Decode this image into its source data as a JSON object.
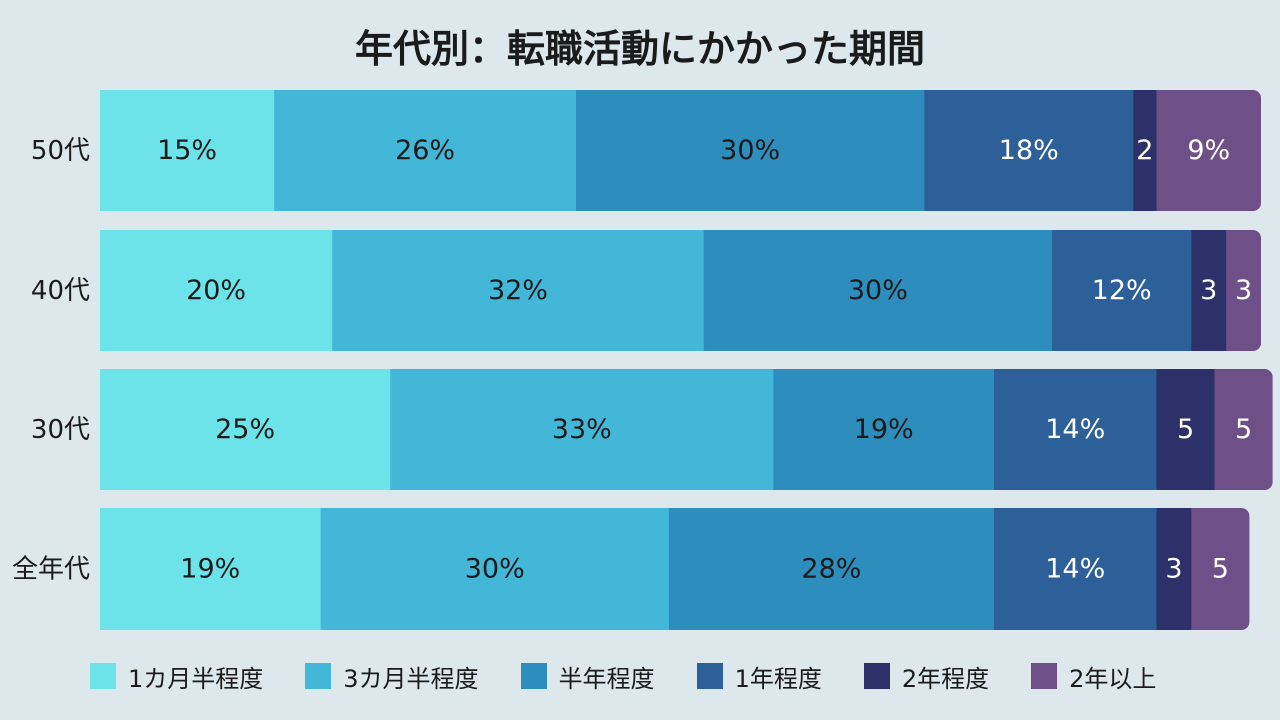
{
  "chart_data": {
    "type": "bar",
    "orientation": "horizontal",
    "stacked": true,
    "title": "年代別：転職活動にかかった期間",
    "xlabel": "",
    "ylabel": "",
    "xlim": [
      0,
      100
    ],
    "grid": false,
    "legend_position": "bottom",
    "categories": [
      "50代",
      "40代",
      "30代",
      "全年代"
    ],
    "series": [
      {
        "name": "1カ月半程度",
        "color": "#6ce3e9",
        "label_color": "#1b1b1b",
        "values": [
          15,
          20,
          25,
          19
        ],
        "labels": [
          "15%",
          "20%",
          "25%",
          "19%"
        ]
      },
      {
        "name": "3カ月半程度",
        "color": "#42b7d7",
        "label_color": "#1b1b1b",
        "values": [
          26,
          32,
          33,
          30
        ],
        "labels": [
          "26%",
          "32%",
          "33%",
          "30%"
        ]
      },
      {
        "name": "半年程度",
        "color": "#2d8dbc",
        "label_color": "#1b1b1b",
        "values": [
          30,
          30,
          19,
          28
        ],
        "labels": [
          "30%",
          "30%",
          "19%",
          "28%"
        ]
      },
      {
        "name": "1年程度",
        "color": "#2d5f98",
        "label_color": "#ffffff",
        "values": [
          18,
          12,
          14,
          14
        ],
        "labels": [
          "18%",
          "12%",
          "14%",
          "14%"
        ]
      },
      {
        "name": "2年程度",
        "color": "#2c3269",
        "label_color": "#ffffff",
        "values": [
          2,
          3,
          5,
          3
        ],
        "labels": [
          "2",
          "3",
          "5",
          "3"
        ]
      },
      {
        "name": "2年以上",
        "color": "#6f4f88",
        "label_color": "#ffffff",
        "values": [
          9,
          3,
          5,
          5
        ],
        "labels": [
          "9%",
          "3",
          "5",
          "5"
        ]
      }
    ]
  }
}
